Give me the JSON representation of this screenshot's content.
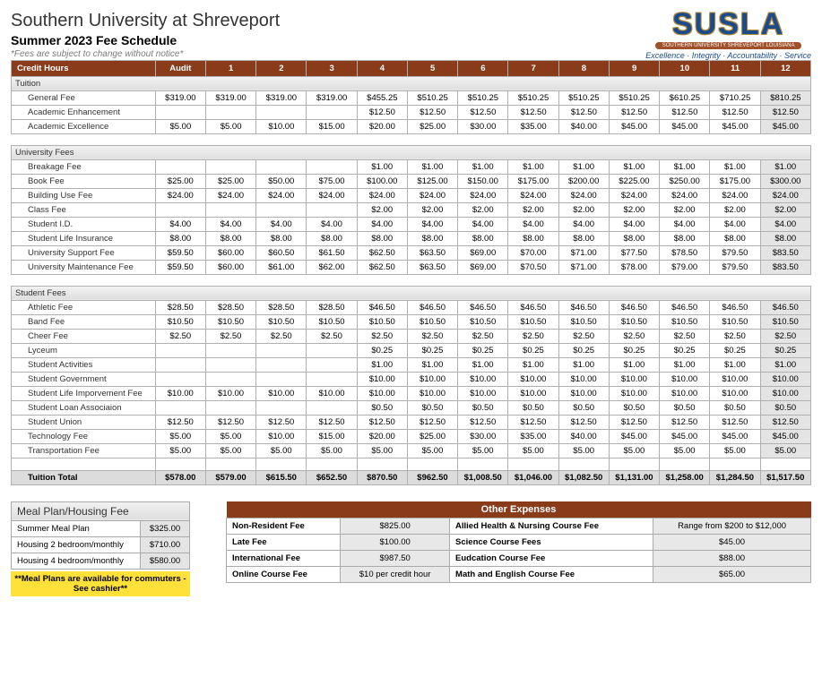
{
  "header": {
    "title": "Southern University at Shreveport",
    "subtitle": "Summer 2023 Fee Schedule",
    "notice": "*Fees are subject to change without notice*",
    "logo_main": "SUSLA",
    "logo_banner": "SOUTHERN UNIVERSITY SHREVEPORT LOUISIANA",
    "logo_tag": "Excellence · Integrity · Accountability · Service"
  },
  "columns": [
    "Credit Hours",
    "Audit",
    "1",
    "2",
    "3",
    "4",
    "5",
    "6",
    "7",
    "8",
    "9",
    "10",
    "11",
    "12"
  ],
  "sections": [
    {
      "name": "Tuition",
      "rows": [
        {
          "label": "General Fee",
          "v": [
            "$319.00",
            "$319.00",
            "$319.00",
            "$319.00",
            "$455.25",
            "$510.25",
            "$510.25",
            "$510.25",
            "$510.25",
            "$510.25",
            "$610.25",
            "$710.25",
            "$810.25"
          ]
        },
        {
          "label": "Academic Enhancement",
          "v": [
            "",
            "",
            "",
            "",
            "$12.50",
            "$12.50",
            "$12.50",
            "$12.50",
            "$12.50",
            "$12.50",
            "$12.50",
            "$12.50",
            "$12.50"
          ]
        },
        {
          "label": "Academic Excellence",
          "v": [
            "$5.00",
            "$5.00",
            "$10.00",
            "$15.00",
            "$20.00",
            "$25.00",
            "$30.00",
            "$35.00",
            "$40.00",
            "$45.00",
            "$45.00",
            "$45.00",
            "$45.00"
          ]
        }
      ]
    },
    {
      "name": "University Fees",
      "rows": [
        {
          "label": "Breakage Fee",
          "v": [
            "",
            "",
            "",
            "",
            "$1.00",
            "$1.00",
            "$1.00",
            "$1.00",
            "$1.00",
            "$1.00",
            "$1.00",
            "$1.00",
            "$1.00"
          ]
        },
        {
          "label": "Book Fee",
          "v": [
            "$25.00",
            "$25.00",
            "$50.00",
            "$75.00",
            "$100.00",
            "$125.00",
            "$150.00",
            "$175.00",
            "$200.00",
            "$225.00",
            "$250.00",
            "$175.00",
            "$300.00"
          ]
        },
        {
          "label": "Building Use Fee",
          "v": [
            "$24.00",
            "$24.00",
            "$24.00",
            "$24.00",
            "$24.00",
            "$24.00",
            "$24.00",
            "$24.00",
            "$24.00",
            "$24.00",
            "$24.00",
            "$24.00",
            "$24.00"
          ]
        },
        {
          "label": "Class Fee",
          "v": [
            "",
            "",
            "",
            "",
            "$2.00",
            "$2.00",
            "$2.00",
            "$2.00",
            "$2.00",
            "$2.00",
            "$2.00",
            "$2.00",
            "$2.00"
          ]
        },
        {
          "label": "Student I.D.",
          "v": [
            "$4.00",
            "$4.00",
            "$4.00",
            "$4.00",
            "$4.00",
            "$4.00",
            "$4.00",
            "$4.00",
            "$4.00",
            "$4.00",
            "$4.00",
            "$4.00",
            "$4.00"
          ]
        },
        {
          "label": "Student Life Insurance",
          "v": [
            "$8.00",
            "$8.00",
            "$8.00",
            "$8.00",
            "$8.00",
            "$8.00",
            "$8.00",
            "$8.00",
            "$8.00",
            "$8.00",
            "$8.00",
            "$8.00",
            "$8.00"
          ]
        },
        {
          "label": "University Support Fee",
          "v": [
            "$59.50",
            "$60.00",
            "$60.50",
            "$61.50",
            "$62.50",
            "$63.50",
            "$69.00",
            "$70.00",
            "$71.00",
            "$77.50",
            "$78.50",
            "$79.50",
            "$83.50"
          ]
        },
        {
          "label": "University Maintenance Fee",
          "v": [
            "$59.50",
            "$60.00",
            "$61.00",
            "$62.00",
            "$62.50",
            "$63.50",
            "$69.00",
            "$70.50",
            "$71.00",
            "$78.00",
            "$79.00",
            "$79.50",
            "$83.50"
          ]
        }
      ]
    },
    {
      "name": "Student Fees",
      "rows": [
        {
          "label": "Athletic Fee",
          "v": [
            "$28.50",
            "$28.50",
            "$28.50",
            "$28.50",
            "$46.50",
            "$46.50",
            "$46.50",
            "$46.50",
            "$46.50",
            "$46.50",
            "$46.50",
            "$46.50",
            "$46.50"
          ]
        },
        {
          "label": "Band Fee",
          "v": [
            "$10.50",
            "$10.50",
            "$10.50",
            "$10.50",
            "$10.50",
            "$10.50",
            "$10.50",
            "$10.50",
            "$10.50",
            "$10.50",
            "$10.50",
            "$10.50",
            "$10.50"
          ]
        },
        {
          "label": "Cheer Fee",
          "v": [
            "$2.50",
            "$2.50",
            "$2.50",
            "$2.50",
            "$2.50",
            "$2.50",
            "$2.50",
            "$2.50",
            "$2.50",
            "$2.50",
            "$2.50",
            "$2.50",
            "$2.50"
          ]
        },
        {
          "label": "Lyceum",
          "v": [
            "",
            "",
            "",
            "",
            "$0.25",
            "$0.25",
            "$0.25",
            "$0.25",
            "$0.25",
            "$0.25",
            "$0.25",
            "$0.25",
            "$0.25"
          ]
        },
        {
          "label": "Student Activities",
          "v": [
            "",
            "",
            "",
            "",
            "$1.00",
            "$1.00",
            "$1.00",
            "$1.00",
            "$1.00",
            "$1.00",
            "$1.00",
            "$1.00",
            "$1.00"
          ]
        },
        {
          "label": "Student Government",
          "v": [
            "",
            "",
            "",
            "",
            "$10.00",
            "$10.00",
            "$10.00",
            "$10.00",
            "$10.00",
            "$10.00",
            "$10.00",
            "$10.00",
            "$10.00"
          ]
        },
        {
          "label": "Student Life Imporvement Fee",
          "v": [
            "$10.00",
            "$10.00",
            "$10.00",
            "$10.00",
            "$10.00",
            "$10.00",
            "$10.00",
            "$10.00",
            "$10.00",
            "$10.00",
            "$10.00",
            "$10.00",
            "$10.00"
          ]
        },
        {
          "label": "Student Loan Associaion",
          "v": [
            "",
            "",
            "",
            "",
            "$0.50",
            "$0.50",
            "$0.50",
            "$0.50",
            "$0.50",
            "$0.50",
            "$0.50",
            "$0.50",
            "$0.50"
          ]
        },
        {
          "label": "Student Union",
          "v": [
            "$12.50",
            "$12.50",
            "$12.50",
            "$12.50",
            "$12.50",
            "$12.50",
            "$12.50",
            "$12.50",
            "$12.50",
            "$12.50",
            "$12.50",
            "$12.50",
            "$12.50"
          ]
        },
        {
          "label": "Technology Fee",
          "v": [
            "$5.00",
            "$5.00",
            "$10.00",
            "$15.00",
            "$20.00",
            "$25.00",
            "$30.00",
            "$35.00",
            "$40.00",
            "$45.00",
            "$45.00",
            "$45.00",
            "$45.00"
          ]
        },
        {
          "label": "Transportation Fee",
          "v": [
            "$5.00",
            "$5.00",
            "$5.00",
            "$5.00",
            "$5.00",
            "$5.00",
            "$5.00",
            "$5.00",
            "$5.00",
            "$5.00",
            "$5.00",
            "$5.00",
            "$5.00"
          ]
        }
      ],
      "total": {
        "label": "Tuition Total",
        "v": [
          "$578.00",
          "$579.00",
          "$615.50",
          "$652.50",
          "$870.50",
          "$962.50",
          "$1,008.50",
          "$1,046.00",
          "$1,082.50",
          "$1,131.00",
          "$1,258.00",
          "$1,284.50",
          "$1,517.50"
        ]
      }
    }
  ],
  "meal": {
    "title": "Meal Plan/Housing Fee",
    "rows": [
      {
        "label": "Summer Meal Plan",
        "val": "$325.00"
      },
      {
        "label": "Housing 2 bedroom/monthly",
        "val": "$710.00"
      },
      {
        "label": "Housing 4 bedroom/monthly",
        "val": "$580.00"
      }
    ],
    "note": "**Meal Plans are available for commuters - See cashier**"
  },
  "other": {
    "title": "Other Expenses",
    "rows": [
      [
        "Non-Resident Fee",
        "$825.00",
        "Allied Health & Nursing Course Fee",
        "Range from $200 to $12,000"
      ],
      [
        "Late Fee",
        "$100.00",
        "Science Course Fees",
        "$45.00"
      ],
      [
        "International Fee",
        "$987.50",
        "Eudcation Course Fee",
        "$88.00"
      ],
      [
        "Online Course Fee",
        "$10 per credit hour",
        "Math and English Course Fee",
        "$65.00"
      ]
    ]
  },
  "colors": {
    "header_bg": "#8a3b1a",
    "section_grad_top": "#f2f2f2",
    "section_grad_bot": "#dedede",
    "last_col_bg": "#e4e4e4",
    "total_bg": "#dcdcdc",
    "note_bg": "#ffe13a",
    "logo_blue": "#1a4b8c",
    "logo_gold": "#b08a3a"
  }
}
